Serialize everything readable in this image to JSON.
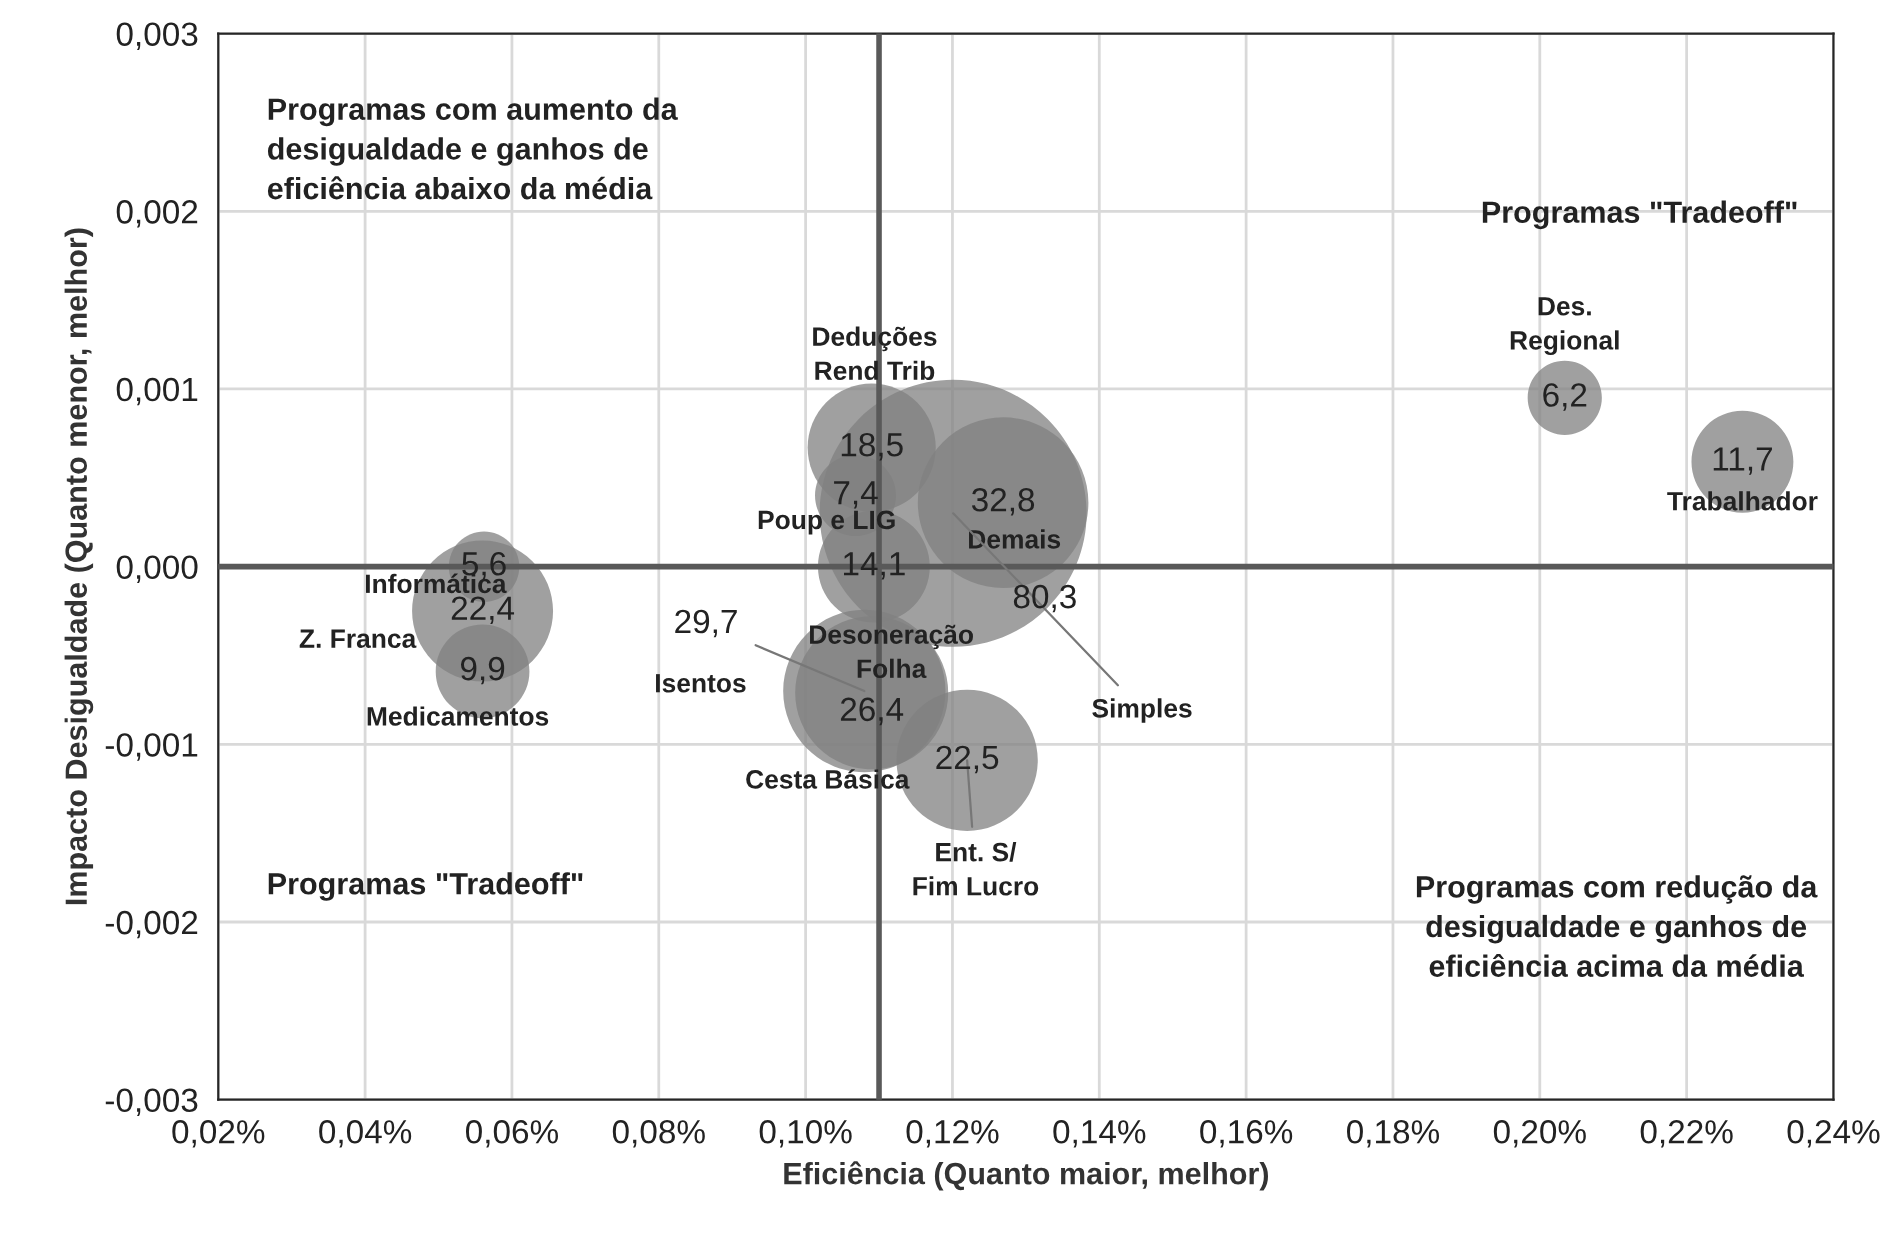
{
  "chart_data": {
    "type": "bubble",
    "xlabel": "Eficiência (Quanto maior, melhor)",
    "ylabel": "Impacto Desigualdade (Quanto menor, melhor)",
    "x": [
      0.109,
      0.1068,
      0.1093,
      0.1201,
      0.1269,
      0.109,
      0.108,
      0.122,
      0.0562,
      0.056,
      0.056,
      0.2034,
      0.2276
    ],
    "values": [
      0.00067,
      0.0004,
      0.0,
      0.0003,
      0.00036,
      -0.00071,
      -0.0007,
      -0.00109,
      0.0,
      -0.00025,
      -0.00059,
      0.00095,
      0.00059
    ],
    "sizes": [
      18.5,
      7.4,
      14.1,
      80.3,
      32.8,
      26.4,
      29.7,
      22.5,
      5.6,
      22.4,
      9.9,
      6.2,
      11.7
    ],
    "value_labels": [
      "18,5",
      "7,4",
      "14,1",
      "80,3",
      "32,8",
      "26,4",
      "29,7",
      "22,5",
      "5,6",
      "22,4",
      "9,9",
      "6,2",
      "11,7"
    ],
    "color": "#808080",
    "xlim": [
      0.02,
      0.24
    ],
    "xticks": [
      {
        "value": 0.02,
        "label": "0,02%"
      },
      {
        "value": 0.04,
        "label": "0,04%"
      },
      {
        "value": 0.06,
        "label": "0,06%"
      },
      {
        "value": 0.08,
        "label": "0,08%"
      },
      {
        "value": 0.1,
        "label": "0,10%"
      },
      {
        "value": 0.12,
        "label": "0,12%"
      },
      {
        "value": 0.14,
        "label": "0,14%"
      },
      {
        "value": 0.16,
        "label": "0,16%"
      },
      {
        "value": 0.18,
        "label": "0,18%"
      },
      {
        "value": 0.2,
        "label": "0,20%"
      },
      {
        "value": 0.22,
        "label": "0,22%"
      },
      {
        "value": 0.24,
        "label": "0,24%"
      }
    ],
    "ylim": [
      -0.003,
      0.003
    ],
    "yticks": [
      {
        "value": -0.003,
        "label": "-0,003"
      },
      {
        "value": -0.002,
        "label": "-0,002"
      },
      {
        "value": -0.001,
        "label": "-0,001"
      },
      {
        "value": 0.0,
        "label": "0,000"
      },
      {
        "value": 0.001,
        "label": "0,001"
      },
      {
        "value": 0.002,
        "label": "0,002"
      },
      {
        "value": 0.003,
        "label": "0,003"
      }
    ],
    "grid": true,
    "ref_lines": [
      {
        "axis": "x",
        "value": 0.11,
        "color": "#595959"
      },
      {
        "axis": "y",
        "value": 0.0,
        "color": "#595959"
      }
    ],
    "annotations": [
      "Programas com aumento da\ndesigualdade e ganhos de\neficiência abaixo da média",
      "Programas \"Tradeoff\"",
      "Programas \"Tradeoff\"",
      "Programas com redução da\ndesigualdade e ganhos de\neficiência acima da média",
      {
        "text": "Deduções\nRend Trib",
        "x": 0.109,
        "y": 0.00067
      },
      {
        "text": "Poup e LIG",
        "x": 0.1093,
        "y": 0.0
      },
      {
        "text": "Demais",
        "x": 0.1269,
        "y": 0.00036
      },
      {
        "text": "Simples",
        "x": 0.1201,
        "y": 0.0003
      },
      {
        "text": "Desoneração\nFolha",
        "x": 0.109,
        "y": -0.00071
      },
      {
        "text": "Isentos",
        "x": 0.108,
        "y": -0.0007
      },
      {
        "text": "Cesta Básica",
        "x": 0.109,
        "y": -0.00071
      },
      {
        "text": "Ent. S/\nFim Lucro",
        "x": 0.122,
        "y": -0.00109
      },
      {
        "text": "Informática",
        "x": 0.056,
        "y": -0.00025
      },
      {
        "text": "Z. Franca",
        "x": 0.056,
        "y": -0.00059
      },
      {
        "text": "Medicamentos",
        "x": 0.056,
        "y": -0.00059
      },
      {
        "text": "Des.\nRegional",
        "x": 0.2034,
        "y": 0.00095
      },
      {
        "text": "Trabalhador",
        "x": 0.2276,
        "y": 0.00059
      }
    ]
  }
}
